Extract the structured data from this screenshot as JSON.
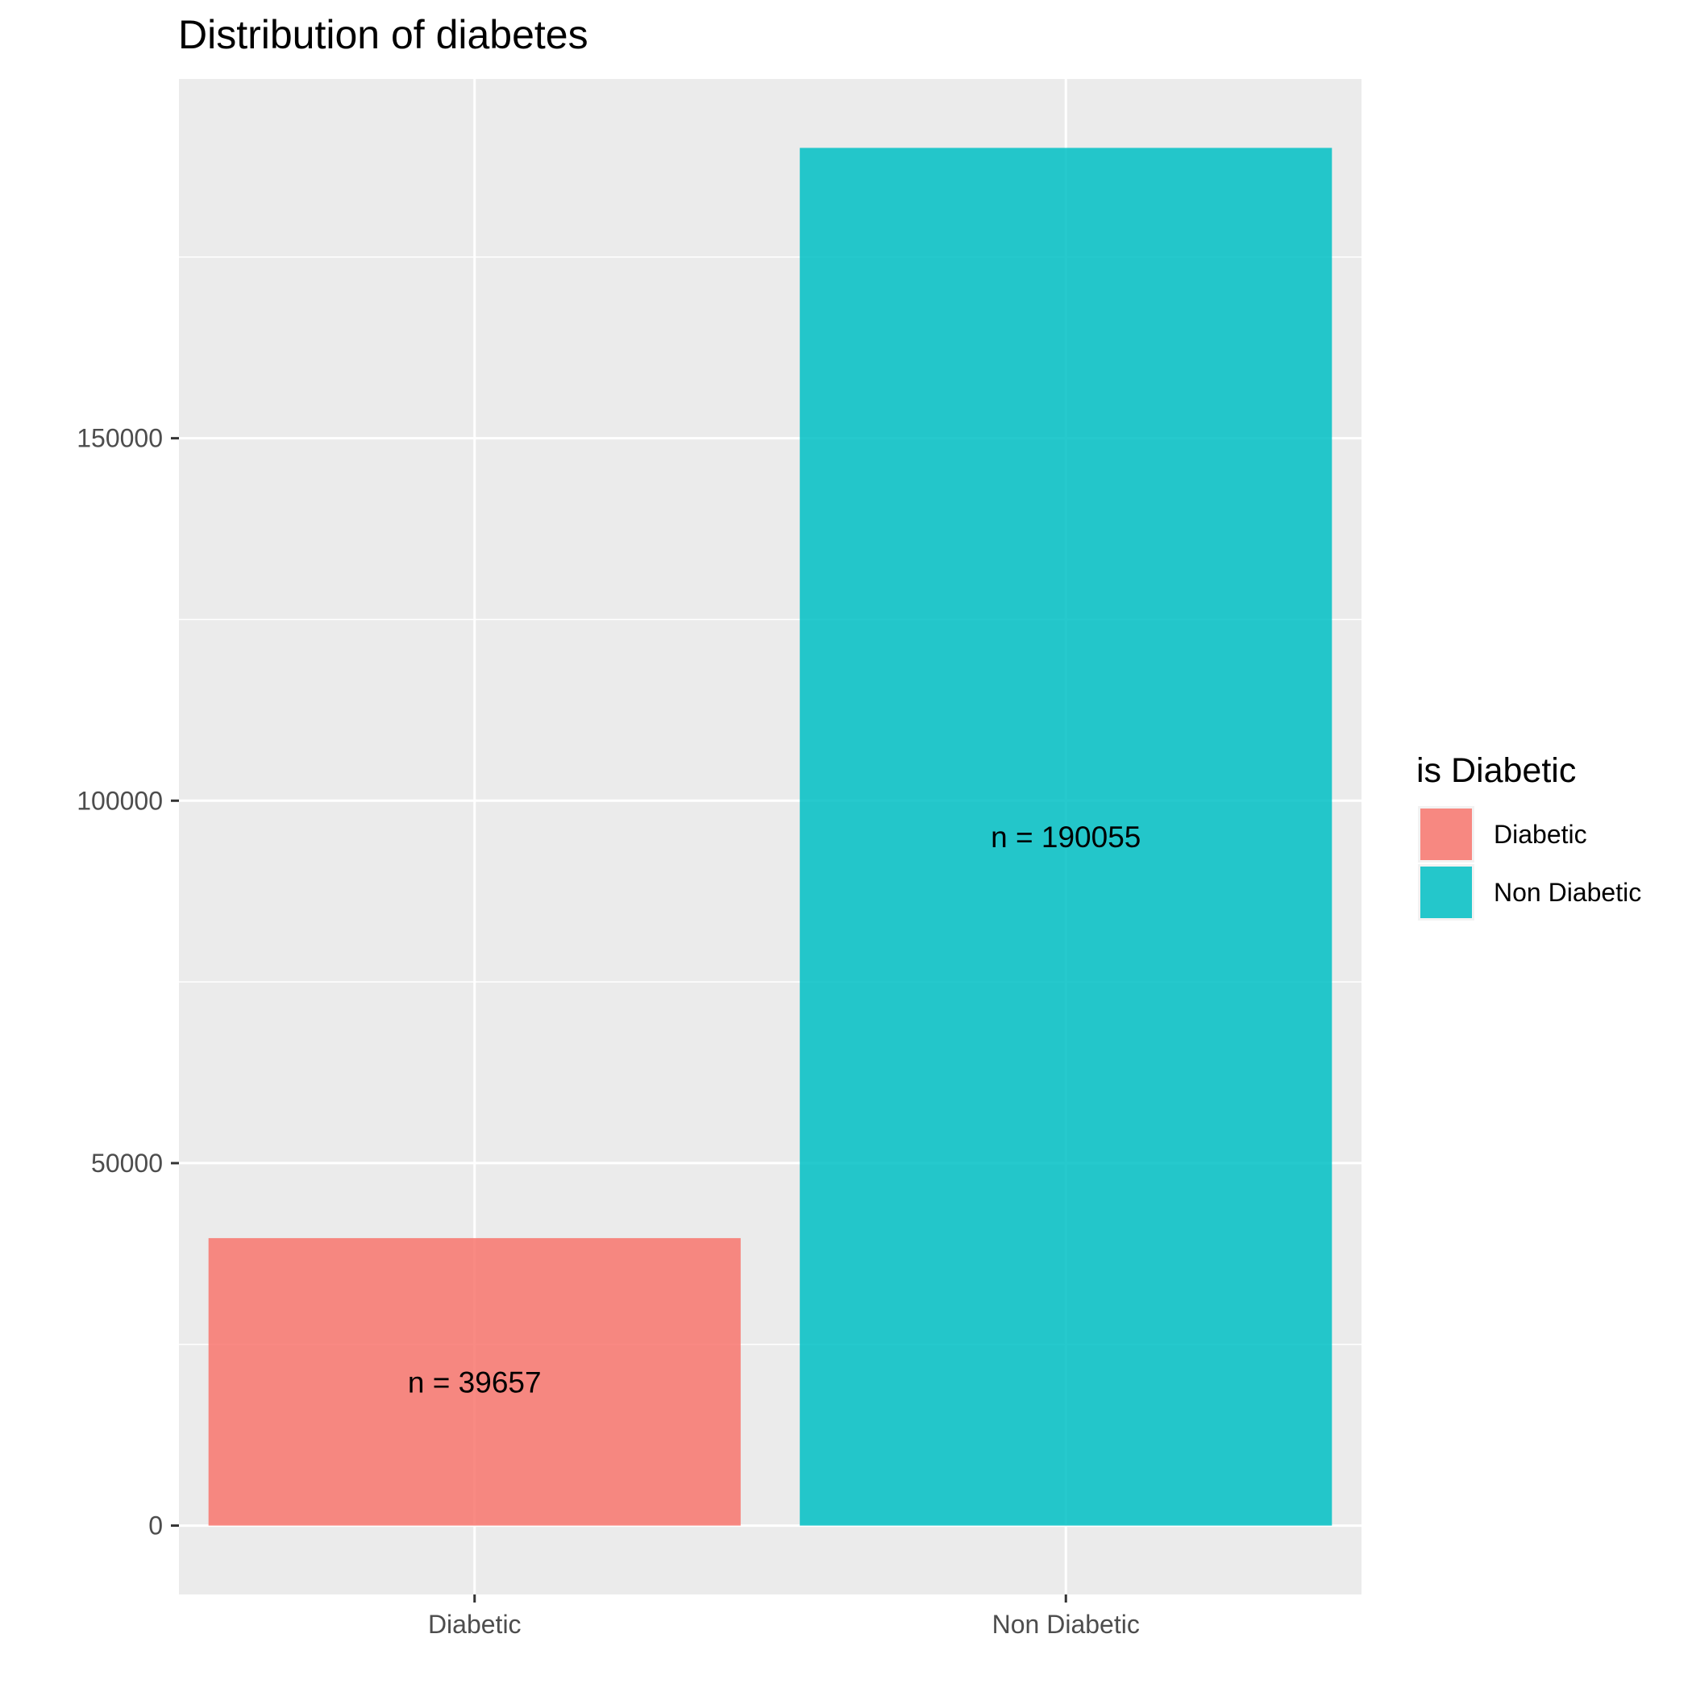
{
  "chart_data": {
    "type": "bar",
    "title": "Distribution of diabetes",
    "xlabel": "",
    "ylabel": "",
    "categories": [
      "Diabetic",
      "Non Diabetic"
    ],
    "values": [
      39657,
      190055
    ],
    "bar_labels": [
      "n =  39657",
      "n =  190055"
    ],
    "colors": [
      "#F8766D",
      "#00BFC4"
    ],
    "ylim": [
      -9500,
      199558
    ],
    "y_ticks": [
      0,
      50000,
      100000,
      150000
    ],
    "y_tick_labels": [
      "0",
      "50000",
      "100000",
      "150000"
    ],
    "y_minor_ticks": [
      25000,
      75000,
      125000,
      175000
    ],
    "grid": true,
    "panel_background": "#EBEBEB",
    "legend": {
      "title": "is Diabetic",
      "position": "right",
      "items": [
        {
          "label": "Diabetic",
          "color": "#F8766D"
        },
        {
          "label": "Non Diabetic",
          "color": "#00BFC4"
        }
      ]
    }
  }
}
